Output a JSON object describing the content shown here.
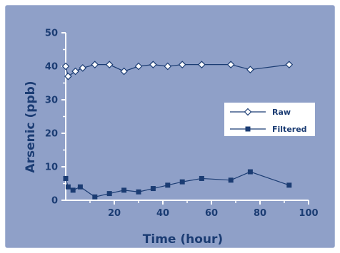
{
  "chart_data": {
    "type": "line",
    "title": "",
    "xlabel": "Time (hour)",
    "ylabel": "Arsenic (ppb)",
    "xlim": [
      0,
      100
    ],
    "ylim": [
      0,
      50
    ],
    "x_ticks": [
      "20",
      "40",
      "60",
      "80",
      "100"
    ],
    "y_ticks": [
      "0",
      "10",
      "20",
      "30",
      "40",
      "50"
    ],
    "grid": false,
    "legend_position": "right",
    "series": [
      {
        "name": "Raw",
        "marker": "diamond-open",
        "x": [
          0,
          1,
          4,
          7,
          12,
          18,
          24,
          30,
          36,
          42,
          48,
          56,
          68,
          76,
          92
        ],
        "y": [
          40,
          37,
          38.5,
          39.5,
          40.5,
          40.5,
          38.5,
          40,
          40.5,
          40,
          40.5,
          40.5,
          40.5,
          39,
          40.5
        ]
      },
      {
        "name": "Filtered",
        "marker": "square-filled",
        "x": [
          0,
          1,
          3,
          6,
          12,
          18,
          24,
          30,
          36,
          42,
          48,
          56,
          68,
          76,
          92
        ],
        "y": [
          6.5,
          4,
          3,
          4,
          1,
          2,
          3,
          2.5,
          3.5,
          4.5,
          5.5,
          6.5,
          6,
          8.5,
          4.5
        ]
      }
    ]
  },
  "colors": {
    "panel_background": "#8fa0c8",
    "frame": "#ffffff",
    "axis": "#ffffff",
    "text": "#1b3c73",
    "series_line": "#1b3c73",
    "raw_marker_fill": "#ffffff",
    "filtered_marker_fill": "#1b3c73",
    "legend_background": "#ffffff"
  }
}
